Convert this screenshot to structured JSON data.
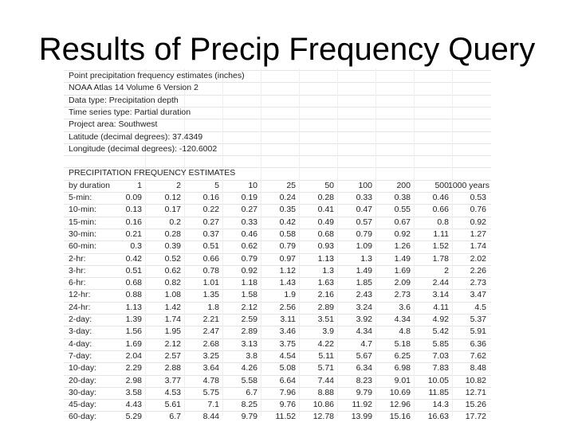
{
  "header": {
    "title": "Results of Precip Frequency Query"
  },
  "info": [
    "Point precipitation frequency estimates (inches)",
    "NOAA Atlas 14 Volume 6 Version 2",
    "Data type: Precipitation depth",
    "Time series type: Partial duration",
    "Project area: Southwest",
    "Latitude (decimal degrees): 37.4349",
    "Longitude (decimal degrees): -120.6002"
  ],
  "table": {
    "title": "PRECIPITATION FREQUENCY ESTIMATES",
    "columns": [
      "by duration",
      "1",
      "2",
      "5",
      "10",
      "25",
      "50",
      "100",
      "200",
      "500",
      "1000 years"
    ],
    "rows": [
      [
        "5-min:",
        0.09,
        0.12,
        0.16,
        0.19,
        0.24,
        0.28,
        0.33,
        0.38,
        0.46,
        0.53
      ],
      [
        "10-min:",
        0.13,
        0.17,
        0.22,
        0.27,
        0.35,
        0.41,
        0.47,
        0.55,
        0.66,
        0.76
      ],
      [
        "15-min:",
        0.16,
        0.2,
        0.27,
        0.33,
        0.42,
        0.49,
        0.57,
        0.67,
        0.8,
        0.92
      ],
      [
        "30-min:",
        0.21,
        0.28,
        0.37,
        0.46,
        0.58,
        0.68,
        0.79,
        0.92,
        1.11,
        1.27
      ],
      [
        "60-min:",
        0.3,
        0.39,
        0.51,
        0.62,
        0.79,
        0.93,
        1.09,
        1.26,
        1.52,
        1.74
      ],
      [
        "2-hr:",
        0.42,
        0.52,
        0.66,
        0.79,
        0.97,
        1.13,
        1.3,
        1.49,
        1.78,
        2.02
      ],
      [
        "3-hr:",
        0.51,
        0.62,
        0.78,
        0.92,
        1.12,
        1.3,
        1.49,
        1.69,
        2,
        2.26
      ],
      [
        "6-hr:",
        0.68,
        0.82,
        1.01,
        1.18,
        1.43,
        1.63,
        1.85,
        2.09,
        2.44,
        2.73
      ],
      [
        "12-hr:",
        0.88,
        1.08,
        1.35,
        1.58,
        1.9,
        2.16,
        2.43,
        2.73,
        3.14,
        3.47
      ],
      [
        "24-hr:",
        1.13,
        1.42,
        1.8,
        2.12,
        2.56,
        2.89,
        3.24,
        3.6,
        4.11,
        4.5
      ],
      [
        "2-day:",
        1.39,
        1.74,
        2.21,
        2.59,
        3.11,
        3.51,
        3.92,
        4.34,
        4.92,
        5.37
      ],
      [
        "3-day:",
        1.56,
        1.95,
        2.47,
        2.89,
        3.46,
        3.9,
        4.34,
        4.8,
        5.42,
        5.91
      ],
      [
        "4-day:",
        1.69,
        2.12,
        2.68,
        3.13,
        3.75,
        4.22,
        4.7,
        5.18,
        5.85,
        6.36
      ],
      [
        "7-day:",
        2.04,
        2.57,
        3.25,
        3.8,
        4.54,
        5.11,
        5.67,
        6.25,
        7.03,
        7.62
      ],
      [
        "10-day:",
        2.29,
        2.88,
        3.64,
        4.26,
        5.08,
        5.71,
        6.34,
        6.98,
        7.83,
        8.48
      ],
      [
        "20-day:",
        2.98,
        3.77,
        4.78,
        5.58,
        6.64,
        7.44,
        8.23,
        9.01,
        10.05,
        10.82
      ],
      [
        "30-day:",
        3.58,
        4.53,
        5.75,
        6.7,
        7.96,
        8.88,
        9.79,
        10.69,
        11.85,
        12.71
      ],
      [
        "45-day:",
        4.43,
        5.61,
        7.1,
        8.25,
        9.76,
        10.86,
        11.92,
        12.96,
        14.3,
        15.26
      ],
      [
        "60-day:",
        5.29,
        6.7,
        8.44,
        9.79,
        11.52,
        12.78,
        13.99,
        15.16,
        16.63,
        17.72
      ]
    ]
  }
}
